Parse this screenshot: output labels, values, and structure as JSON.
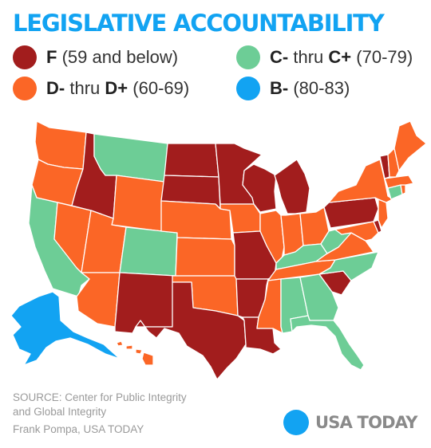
{
  "title": "LEGISLATIVE ACCOUNTABILITY",
  "colors": {
    "F": "#a21d1d",
    "D": "#fb6626",
    "C": "#6dcd96",
    "B": "#12a3f2",
    "title": "#12a3f2",
    "footer_text": "#9a9a9a"
  },
  "legend": [
    {
      "key": "F",
      "grade": "F",
      "connector": "",
      "grade_end": "",
      "range": "(59 and below)"
    },
    {
      "key": "C",
      "grade": "C-",
      "connector": "thru",
      "grade_end": "C+",
      "range": "(70-79)"
    },
    {
      "key": "D",
      "grade": "D-",
      "connector": "thru",
      "grade_end": "D+",
      "range": "(60-69)"
    },
    {
      "key": "B",
      "grade": "B-",
      "connector": "",
      "grade_end": "",
      "range": "(80-83)"
    }
  ],
  "state_grades": {
    "WA": "D",
    "OR": "D",
    "CA": "C",
    "ID": "F",
    "NV": "D",
    "MT": "C",
    "WY": "D",
    "UT": "D",
    "AZ": "D",
    "CO": "C",
    "NM": "F",
    "ND": "F",
    "SD": "F",
    "NE": "D",
    "KS": "D",
    "OK": "D",
    "TX": "F",
    "MN": "F",
    "IA": "D",
    "MO": "F",
    "AR": "F",
    "LA": "F",
    "WI": "F",
    "IL": "D",
    "MI": "F",
    "IN": "D",
    "OH": "D",
    "KY": "C",
    "TN": "D",
    "MS": "D",
    "AL": "C",
    "GA": "C",
    "FL": "C",
    "SC": "F",
    "NC": "C",
    "VA": "D",
    "WV": "C",
    "PA": "F",
    "NY": "D",
    "VT": "F",
    "NH": "D",
    "ME": "D",
    "MA": "D",
    "RI": "D",
    "CT": "C",
    "NJ": "D",
    "DE": "F",
    "MD": "D",
    "AK": "B",
    "HI": "D"
  },
  "source_line1": "SOURCE: Center for Public Integrity",
  "source_line2": "and Global Integrity",
  "credit": "Frank Pompa, USA TODAY",
  "brand": "USA TODAY"
}
